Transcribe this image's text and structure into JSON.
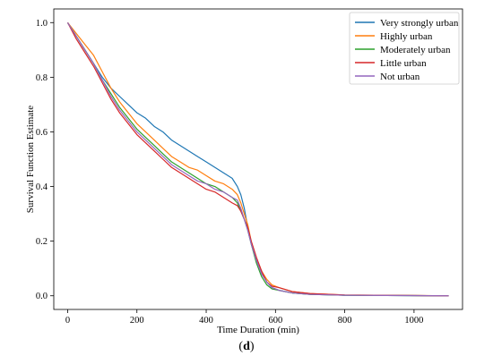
{
  "caption": "(d)",
  "caption_parts": {
    "open": "(",
    "letter": "d",
    "close": ")"
  },
  "chart_data": {
    "type": "line",
    "xlabel": "Time Duration (min)",
    "ylabel": "Survival Function Estimate",
    "xlim": [
      -40,
      1140
    ],
    "ylim": [
      -0.05,
      1.05
    ],
    "xticks": [
      0,
      200,
      400,
      600,
      800,
      1000
    ],
    "yticks": [
      0.0,
      0.2,
      0.4,
      0.6,
      0.8,
      1.0
    ],
    "grid": false,
    "legend_position": "top-right",
    "series": [
      {
        "name": "Very strongly urban",
        "color": "#1f77b4",
        "points": [
          [
            0,
            1.0
          ],
          [
            25,
            0.95
          ],
          [
            50,
            0.9
          ],
          [
            75,
            0.85
          ],
          [
            100,
            0.8
          ],
          [
            125,
            0.76
          ],
          [
            150,
            0.73
          ],
          [
            175,
            0.7
          ],
          [
            200,
            0.67
          ],
          [
            225,
            0.65
          ],
          [
            250,
            0.62
          ],
          [
            275,
            0.6
          ],
          [
            300,
            0.57
          ],
          [
            325,
            0.55
          ],
          [
            350,
            0.53
          ],
          [
            375,
            0.51
          ],
          [
            400,
            0.49
          ],
          [
            425,
            0.47
          ],
          [
            450,
            0.45
          ],
          [
            475,
            0.43
          ],
          [
            490,
            0.4
          ],
          [
            500,
            0.37
          ],
          [
            510,
            0.32
          ],
          [
            520,
            0.25
          ],
          [
            530,
            0.19
          ],
          [
            545,
            0.13
          ],
          [
            560,
            0.09
          ],
          [
            575,
            0.05
          ],
          [
            590,
            0.03
          ],
          [
            610,
            0.02
          ],
          [
            650,
            0.01
          ],
          [
            700,
            0.005
          ],
          [
            800,
            0.002
          ],
          [
            1100,
            0.0
          ]
        ]
      },
      {
        "name": "Highly urban",
        "color": "#ff7f0e",
        "points": [
          [
            0,
            1.0
          ],
          [
            25,
            0.96
          ],
          [
            50,
            0.92
          ],
          [
            75,
            0.88
          ],
          [
            100,
            0.82
          ],
          [
            125,
            0.76
          ],
          [
            150,
            0.71
          ],
          [
            175,
            0.67
          ],
          [
            200,
            0.63
          ],
          [
            225,
            0.6
          ],
          [
            250,
            0.57
          ],
          [
            275,
            0.54
          ],
          [
            300,
            0.51
          ],
          [
            325,
            0.49
          ],
          [
            350,
            0.47
          ],
          [
            375,
            0.46
          ],
          [
            400,
            0.44
          ],
          [
            425,
            0.42
          ],
          [
            450,
            0.41
          ],
          [
            475,
            0.39
          ],
          [
            490,
            0.37
          ],
          [
            500,
            0.34
          ],
          [
            510,
            0.3
          ],
          [
            520,
            0.26
          ],
          [
            530,
            0.2
          ],
          [
            545,
            0.14
          ],
          [
            560,
            0.09
          ],
          [
            575,
            0.06
          ],
          [
            590,
            0.04
          ],
          [
            610,
            0.03
          ],
          [
            650,
            0.015
          ],
          [
            700,
            0.008
          ],
          [
            800,
            0.003
          ],
          [
            1100,
            0.0
          ]
        ]
      },
      {
        "name": "Moderately urban",
        "color": "#2ca02c",
        "points": [
          [
            0,
            1.0
          ],
          [
            25,
            0.95
          ],
          [
            50,
            0.9
          ],
          [
            75,
            0.85
          ],
          [
            100,
            0.79
          ],
          [
            125,
            0.74
          ],
          [
            150,
            0.69
          ],
          [
            175,
            0.65
          ],
          [
            200,
            0.61
          ],
          [
            225,
            0.58
          ],
          [
            250,
            0.55
          ],
          [
            275,
            0.52
          ],
          [
            300,
            0.49
          ],
          [
            325,
            0.47
          ],
          [
            350,
            0.45
          ],
          [
            375,
            0.43
          ],
          [
            400,
            0.41
          ],
          [
            425,
            0.4
          ],
          [
            450,
            0.38
          ],
          [
            475,
            0.36
          ],
          [
            490,
            0.34
          ],
          [
            500,
            0.31
          ],
          [
            510,
            0.28
          ],
          [
            520,
            0.24
          ],
          [
            530,
            0.19
          ],
          [
            545,
            0.12
          ],
          [
            560,
            0.07
          ],
          [
            575,
            0.04
          ],
          [
            590,
            0.025
          ],
          [
            610,
            0.02
          ],
          [
            650,
            0.01
          ],
          [
            700,
            0.005
          ],
          [
            800,
            0.002
          ],
          [
            1100,
            0.0
          ]
        ]
      },
      {
        "name": "Little urban",
        "color": "#d62728",
        "points": [
          [
            0,
            1.0
          ],
          [
            25,
            0.94
          ],
          [
            50,
            0.89
          ],
          [
            75,
            0.84
          ],
          [
            100,
            0.78
          ],
          [
            125,
            0.72
          ],
          [
            150,
            0.67
          ],
          [
            175,
            0.63
          ],
          [
            200,
            0.59
          ],
          [
            225,
            0.56
          ],
          [
            250,
            0.53
          ],
          [
            275,
            0.5
          ],
          [
            300,
            0.47
          ],
          [
            325,
            0.45
          ],
          [
            350,
            0.43
          ],
          [
            375,
            0.41
          ],
          [
            400,
            0.39
          ],
          [
            425,
            0.38
          ],
          [
            450,
            0.36
          ],
          [
            475,
            0.34
          ],
          [
            490,
            0.33
          ],
          [
            500,
            0.31
          ],
          [
            510,
            0.28
          ],
          [
            520,
            0.25
          ],
          [
            530,
            0.2
          ],
          [
            545,
            0.14
          ],
          [
            560,
            0.09
          ],
          [
            575,
            0.05
          ],
          [
            590,
            0.035
          ],
          [
            610,
            0.03
          ],
          [
            650,
            0.015
          ],
          [
            700,
            0.008
          ],
          [
            800,
            0.003
          ],
          [
            1100,
            0.0
          ]
        ]
      },
      {
        "name": "Not urban",
        "color": "#9467bd",
        "points": [
          [
            0,
            1.0
          ],
          [
            25,
            0.95
          ],
          [
            50,
            0.9
          ],
          [
            75,
            0.85
          ],
          [
            100,
            0.79
          ],
          [
            125,
            0.73
          ],
          [
            150,
            0.68
          ],
          [
            175,
            0.64
          ],
          [
            200,
            0.6
          ],
          [
            225,
            0.57
          ],
          [
            250,
            0.54
          ],
          [
            275,
            0.51
          ],
          [
            300,
            0.48
          ],
          [
            325,
            0.46
          ],
          [
            350,
            0.44
          ],
          [
            375,
            0.42
          ],
          [
            400,
            0.41
          ],
          [
            425,
            0.39
          ],
          [
            450,
            0.38
          ],
          [
            475,
            0.36
          ],
          [
            490,
            0.35
          ],
          [
            500,
            0.32
          ],
          [
            510,
            0.28
          ],
          [
            520,
            0.24
          ],
          [
            530,
            0.19
          ],
          [
            545,
            0.13
          ],
          [
            560,
            0.08
          ],
          [
            575,
            0.05
          ],
          [
            590,
            0.03
          ],
          [
            610,
            0.02
          ],
          [
            650,
            0.01
          ],
          [
            700,
            0.005
          ],
          [
            800,
            0.002
          ],
          [
            1100,
            0.0
          ]
        ]
      }
    ]
  }
}
